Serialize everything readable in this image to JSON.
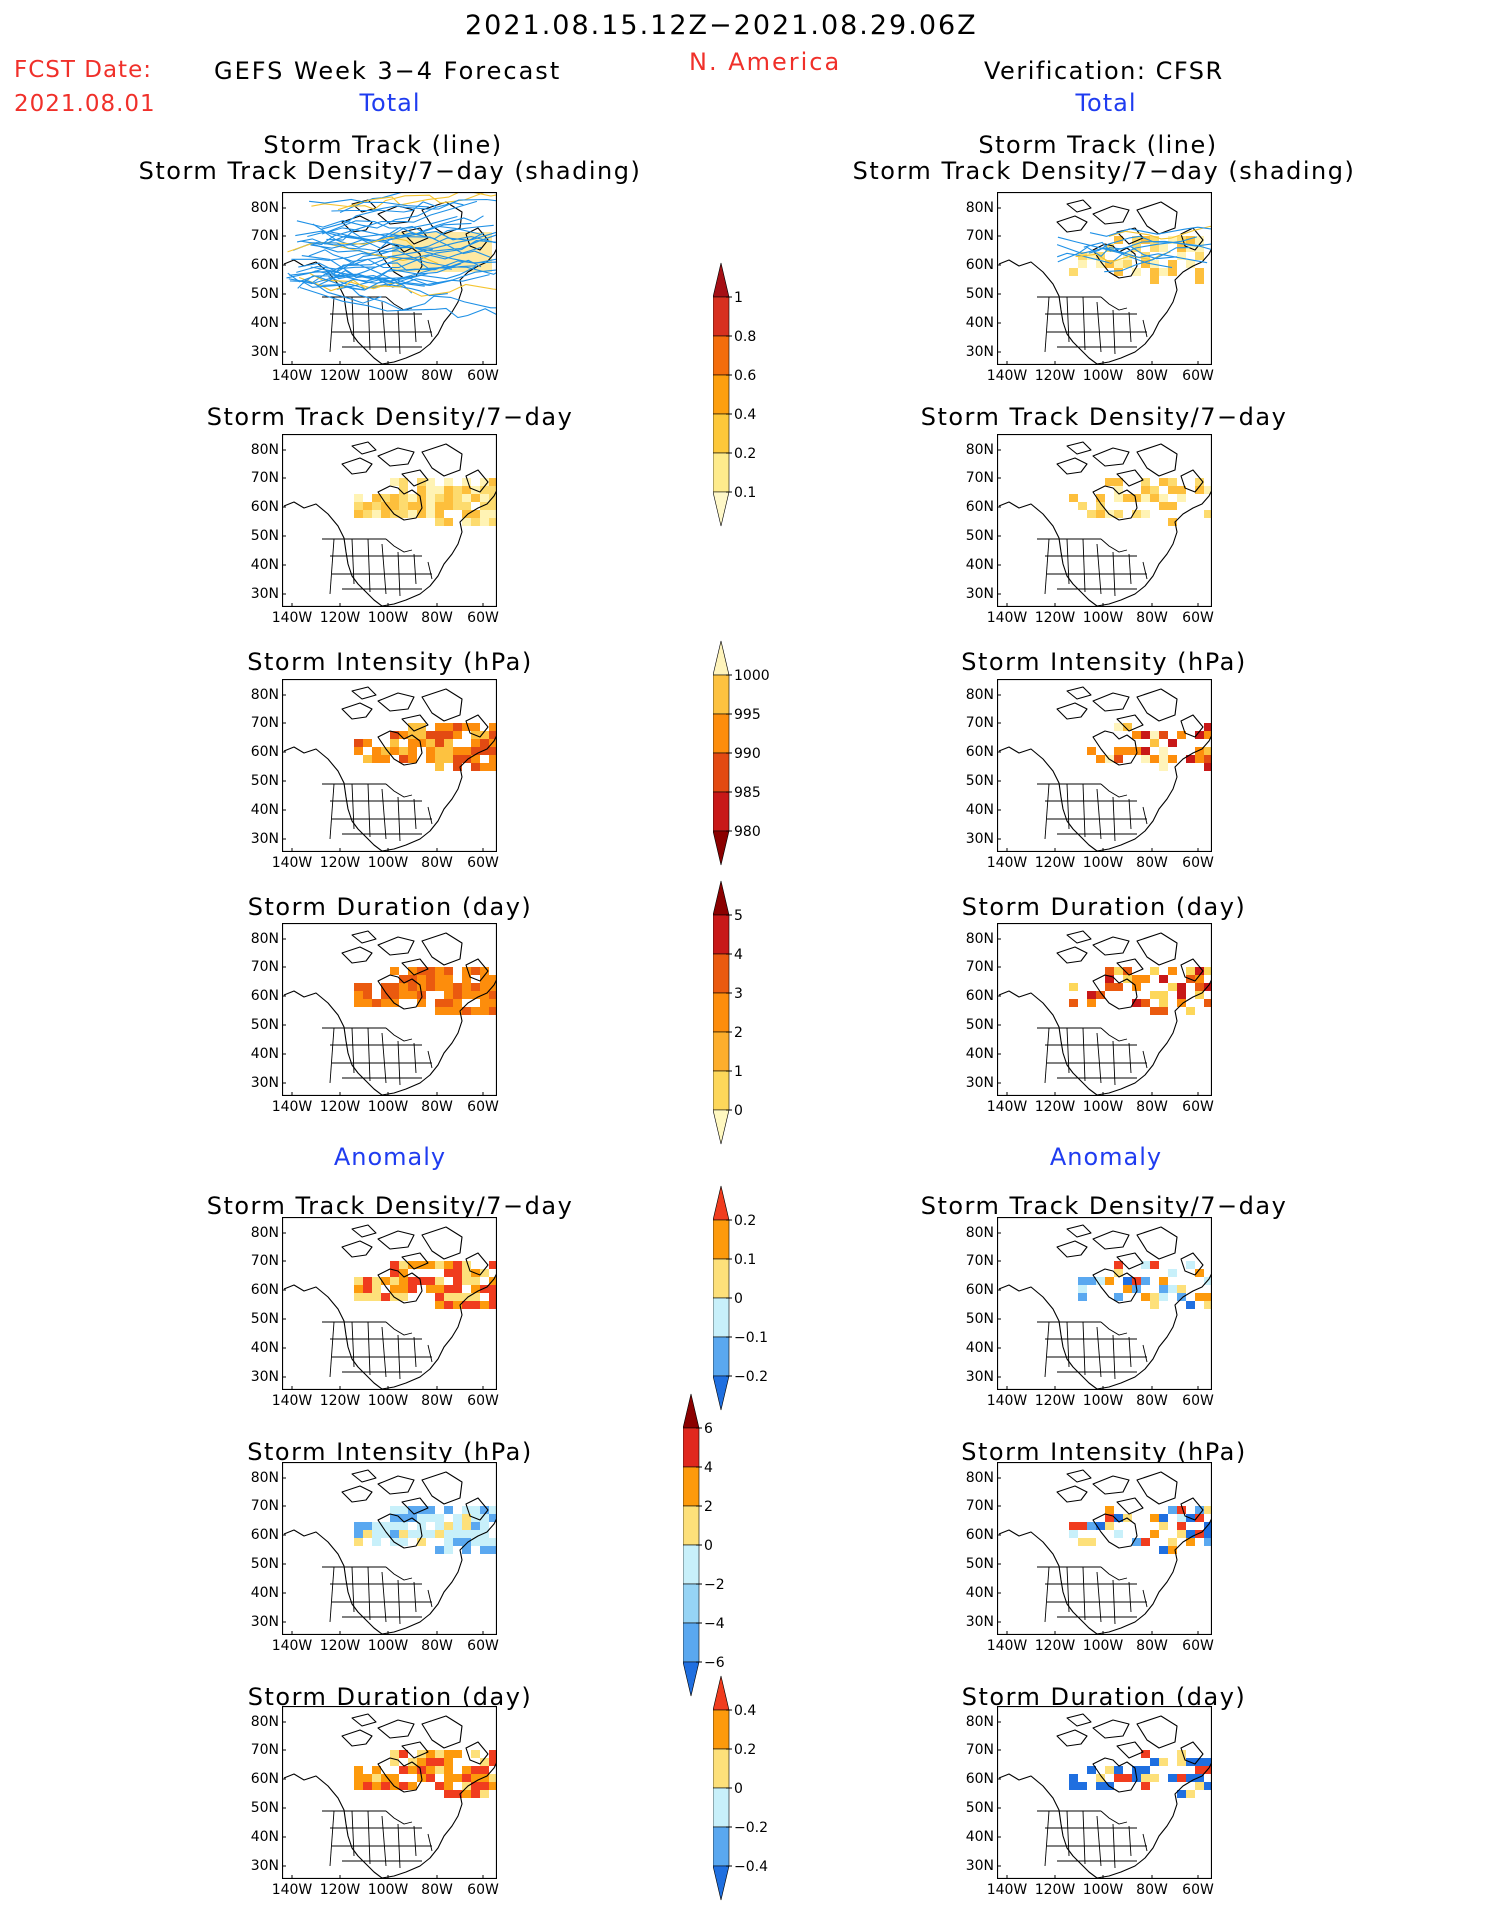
{
  "header": {
    "date_range": "2021.08.15.12Z−2021.08.29.06Z",
    "region": "N. America",
    "fcst_label": "FCST Date:",
    "fcst_date": "2021.08.01",
    "left_model": "GEFS Week 3−4 Forecast",
    "right_model": "Verification: CFSR"
  },
  "sections": {
    "total": "Total",
    "anomaly": "Anomaly"
  },
  "panel_titles": {
    "track_line": "Storm Track (line)",
    "track_shading": "Storm Track Density/7−day (shading)",
    "density": "Storm Track Density/7−day",
    "intensity": "Storm Intensity (hPa)",
    "duration": "Storm Duration (day)"
  },
  "axes": {
    "lat_labels": [
      "80N",
      "70N",
      "60N",
      "50N",
      "40N",
      "30N"
    ],
    "lon_labels": [
      "140W",
      "120W",
      "100W",
      "80W",
      "60W"
    ]
  },
  "colorbars": {
    "density_total": {
      "labels": [
        "1",
        "0.8",
        "0.6",
        "0.4",
        "0.2",
        "0.1"
      ],
      "colors": [
        "#a50f15",
        "#d7301f",
        "#f46d0c",
        "#fd9f0e",
        "#fdc83a",
        "#feeb8c",
        "#fff8c8"
      ]
    },
    "intensity_total": {
      "labels": [
        "1000",
        "995",
        "990",
        "985",
        "980"
      ],
      "colors": [
        "#fff4bb",
        "#fdc240",
        "#fd8d0c",
        "#e34a12",
        "#c81818",
        "#8b0000"
      ]
    },
    "duration_total": {
      "labels": [
        "5",
        "4",
        "3",
        "2",
        "1",
        "0"
      ],
      "colors": [
        "#8b0000",
        "#c81818",
        "#ea5a0f",
        "#fd8d0c",
        "#fdae2c",
        "#fdd75a",
        "#fff8c0"
      ]
    },
    "density_anom": {
      "labels": [
        "0.2",
        "0.1",
        "0",
        "−0.1",
        "−0.2"
      ],
      "colors": [
        "#f03c1e",
        "#fd9a0c",
        "#fde07a",
        "#c8f0fa",
        "#5aa8f0",
        "#1f6fe0"
      ]
    },
    "intensity_anom": {
      "labels": [
        "6",
        "4",
        "2",
        "0",
        "−2",
        "−4",
        "−6"
      ],
      "colors": [
        "#8b0000",
        "#e0281e",
        "#fd9a0c",
        "#fde07a",
        "#c8f0fa",
        "#96d4f5",
        "#5aa8f0",
        "#1f6fe0"
      ]
    },
    "duration_anom": {
      "labels": [
        "0.4",
        "0.2",
        "0",
        "−0.2",
        "−0.4"
      ],
      "colors": [
        "#f03c1e",
        "#fd9a0c",
        "#fde07a",
        "#c8f0fa",
        "#5aa8f0",
        "#1f6fe0"
      ]
    }
  }
}
